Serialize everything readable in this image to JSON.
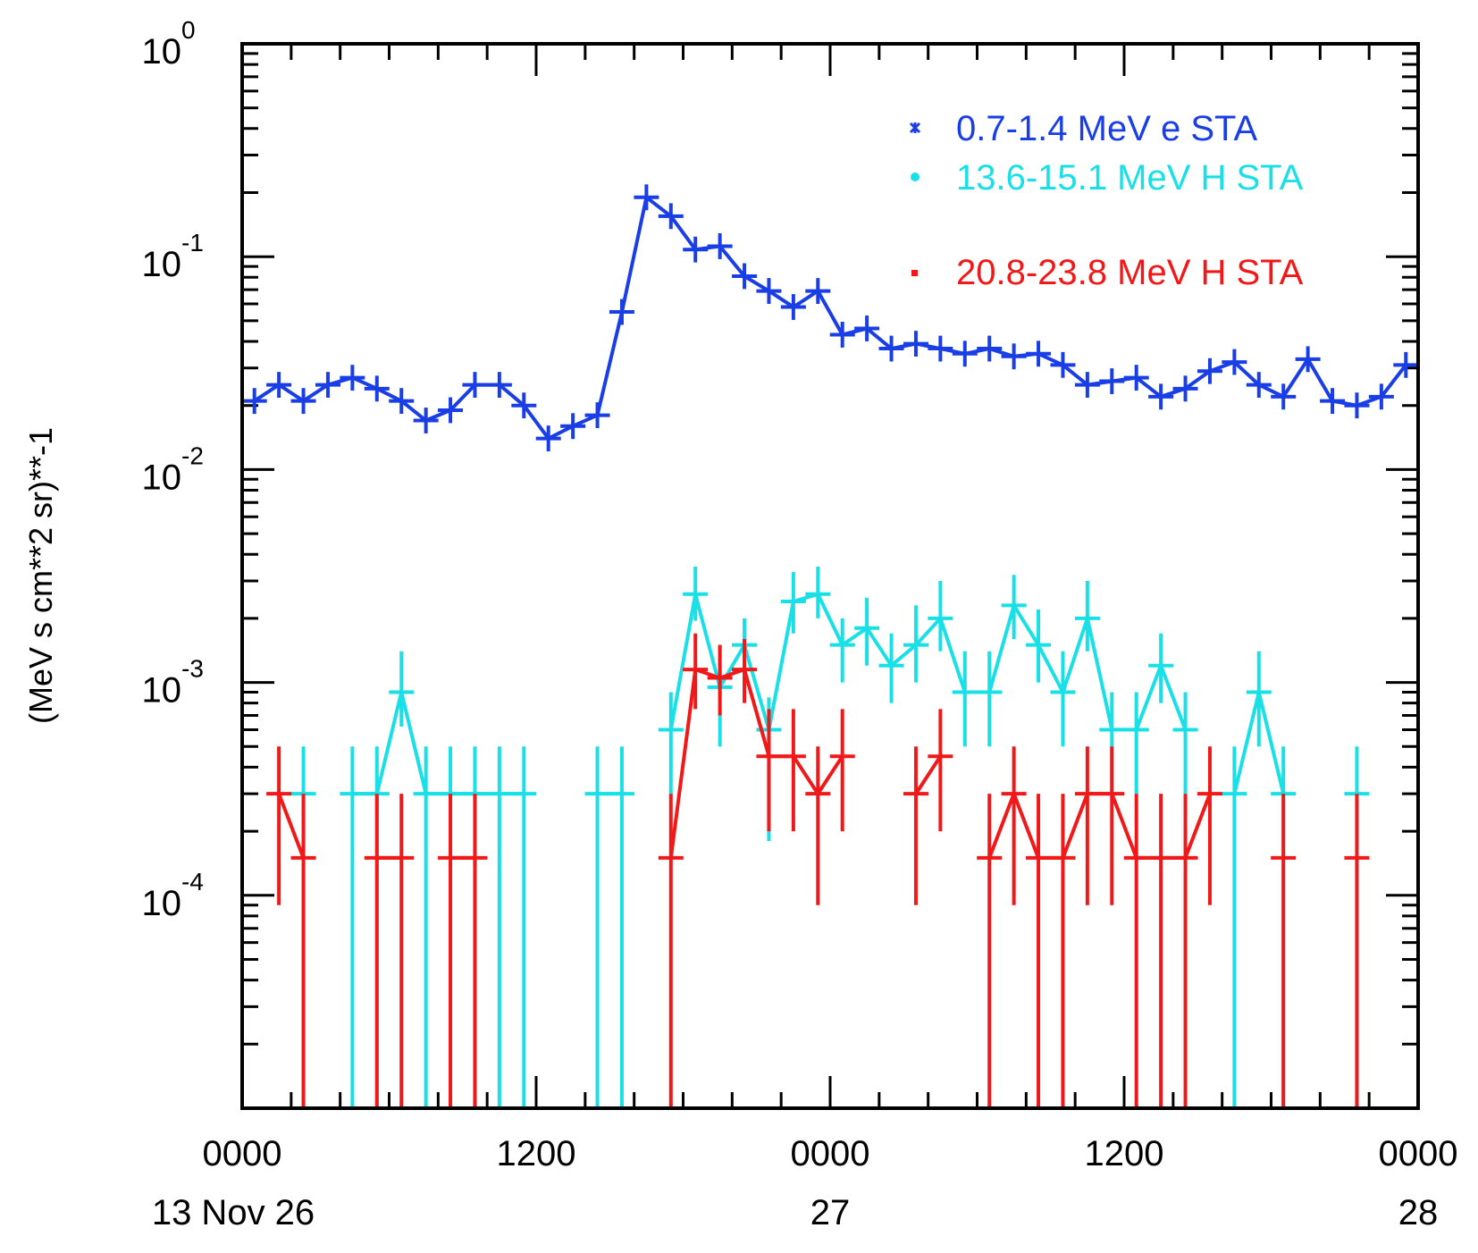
{
  "chart_data": {
    "type": "line",
    "title": "",
    "xlabel": "",
    "ylabel": "(MeV s cm**2 sr)**-1",
    "yscale": "log",
    "ylim": [
      1e-05,
      1
    ],
    "xlim": [
      0,
      48
    ],
    "x_unit": "hours since 2013 Nov 26 0000",
    "x_ticks": [
      {
        "x": 0,
        "top": "0000",
        "bottom": "13 Nov 26"
      },
      {
        "x": 12,
        "top": "1200",
        "bottom": ""
      },
      {
        "x": 24,
        "top": "0000",
        "bottom": "27"
      },
      {
        "x": 36,
        "top": "1200",
        "bottom": ""
      },
      {
        "x": 48,
        "top": "0000",
        "bottom": "28"
      }
    ],
    "y_ticks": [
      {
        "base": "10",
        "exp": "0",
        "value": 1
      },
      {
        "base": "10",
        "exp": "-1",
        "value": 0.1
      },
      {
        "base": "10",
        "exp": "-2",
        "value": 0.01
      },
      {
        "base": "10",
        "exp": "-3",
        "value": 0.001
      },
      {
        "base": "10",
        "exp": "-4",
        "value": 0.0001
      }
    ],
    "series": [
      {
        "name": "0.7-1.4 MeV e STA",
        "color": "#1a3ee6",
        "marker": "asterisk",
        "connect_all": true,
        "points": [
          {
            "x": 0.5,
            "y": 0.021
          },
          {
            "x": 1.5,
            "y": 0.025
          },
          {
            "x": 2.5,
            "y": 0.021
          },
          {
            "x": 3.5,
            "y": 0.025
          },
          {
            "x": 4.5,
            "y": 0.027
          },
          {
            "x": 5.5,
            "y": 0.024
          },
          {
            "x": 6.5,
            "y": 0.021
          },
          {
            "x": 7.5,
            "y": 0.017
          },
          {
            "x": 8.5,
            "y": 0.019
          },
          {
            "x": 9.5,
            "y": 0.025
          },
          {
            "x": 10.5,
            "y": 0.025
          },
          {
            "x": 11.5,
            "y": 0.02
          },
          {
            "x": 12.5,
            "y": 0.014
          },
          {
            "x": 13.5,
            "y": 0.016
          },
          {
            "x": 14.5,
            "y": 0.018
          },
          {
            "x": 15.5,
            "y": 0.055
          },
          {
            "x": 16.5,
            "y": 0.19
          },
          {
            "x": 17.5,
            "y": 0.155
          },
          {
            "x": 18.5,
            "y": 0.108
          },
          {
            "x": 19.5,
            "y": 0.112
          },
          {
            "x": 20.5,
            "y": 0.081
          },
          {
            "x": 21.5,
            "y": 0.069
          },
          {
            "x": 22.5,
            "y": 0.058
          },
          {
            "x": 23.5,
            "y": 0.069
          },
          {
            "x": 24.5,
            "y": 0.043
          },
          {
            "x": 25.5,
            "y": 0.046
          },
          {
            "x": 26.5,
            "y": 0.037
          },
          {
            "x": 27.5,
            "y": 0.039
          },
          {
            "x": 28.5,
            "y": 0.037
          },
          {
            "x": 29.5,
            "y": 0.035
          },
          {
            "x": 30.5,
            "y": 0.037
          },
          {
            "x": 31.5,
            "y": 0.034
          },
          {
            "x": 32.5,
            "y": 0.035
          },
          {
            "x": 33.5,
            "y": 0.031
          },
          {
            "x": 34.5,
            "y": 0.025
          },
          {
            "x": 35.5,
            "y": 0.026
          },
          {
            "x": 36.5,
            "y": 0.027
          },
          {
            "x": 37.5,
            "y": 0.022
          },
          {
            "x": 38.5,
            "y": 0.024
          },
          {
            "x": 39.5,
            "y": 0.029
          },
          {
            "x": 40.5,
            "y": 0.032
          },
          {
            "x": 41.5,
            "y": 0.025
          },
          {
            "x": 42.5,
            "y": 0.022
          },
          {
            "x": 43.5,
            "y": 0.033
          },
          {
            "x": 44.5,
            "y": 0.021
          },
          {
            "x": 45.5,
            "y": 0.02
          },
          {
            "x": 46.5,
            "y": 0.022
          },
          {
            "x": 47.5,
            "y": 0.031
          }
        ]
      },
      {
        "name": "13.6-15.1 MeV H STA",
        "color": "#19e0e6",
        "marker": "circle",
        "connect_all": false,
        "points": [
          {
            "x": 2.5,
            "y": 0.0003,
            "lo": 1e-05,
            "hi": 0.0005
          },
          {
            "x": 4.5,
            "y": 0.0003,
            "lo": 1e-05,
            "hi": 0.0005
          },
          {
            "x": 5.5,
            "y": 0.0003,
            "lo": 1e-05,
            "hi": 0.0005
          },
          {
            "x": 6.5,
            "y": 0.0009,
            "lo": 0.00062,
            "hi": 0.0014
          },
          {
            "x": 7.5,
            "y": 0.0003,
            "lo": 1e-05,
            "hi": 0.0005
          },
          {
            "x": 8.5,
            "y": 0.0003,
            "lo": 1e-05,
            "hi": 0.0005
          },
          {
            "x": 9.5,
            "y": 0.0003,
            "lo": 1e-05,
            "hi": 0.0005
          },
          {
            "x": 10.5,
            "y": 0.0003,
            "lo": 1e-05,
            "hi": 0.0005
          },
          {
            "x": 11.5,
            "y": 0.0003,
            "lo": 1e-05,
            "hi": 0.0005
          },
          {
            "x": 14.5,
            "y": 0.0003,
            "lo": 1e-05,
            "hi": 0.0005
          },
          {
            "x": 15.5,
            "y": 0.0003,
            "lo": 1e-05,
            "hi": 0.0005
          },
          {
            "x": 17.5,
            "y": 0.0006,
            "lo": 0.0003,
            "hi": 0.0009
          },
          {
            "x": 18.5,
            "y": 0.0026,
            "lo": 0.00195,
            "hi": 0.0035
          },
          {
            "x": 19.5,
            "y": 0.00095,
            "lo": 0.0005,
            "hi": 0.0015
          },
          {
            "x": 20.5,
            "y": 0.0015,
            "lo": 0.001,
            "hi": 0.002
          },
          {
            "x": 21.5,
            "y": 0.0006,
            "lo": 0.00018,
            "hi": 0.00085
          },
          {
            "x": 22.5,
            "y": 0.0024,
            "lo": 0.0017,
            "hi": 0.0033
          },
          {
            "x": 23.5,
            "y": 0.0026,
            "lo": 0.002,
            "hi": 0.0035
          },
          {
            "x": 24.5,
            "y": 0.0015,
            "lo": 0.001,
            "hi": 0.002
          },
          {
            "x": 25.5,
            "y": 0.0018,
            "lo": 0.0012,
            "hi": 0.0025
          },
          {
            "x": 26.5,
            "y": 0.0012,
            "lo": 0.0008,
            "hi": 0.0017
          },
          {
            "x": 27.5,
            "y": 0.0015,
            "lo": 0.001,
            "hi": 0.0023
          },
          {
            "x": 28.5,
            "y": 0.002,
            "lo": 0.0014,
            "hi": 0.003
          },
          {
            "x": 29.5,
            "y": 0.0009,
            "lo": 0.0005,
            "hi": 0.0014
          },
          {
            "x": 30.5,
            "y": 0.0009,
            "lo": 0.0005,
            "hi": 0.0014
          },
          {
            "x": 31.5,
            "y": 0.0023,
            "lo": 0.0016,
            "hi": 0.0032
          },
          {
            "x": 32.5,
            "y": 0.0015,
            "lo": 0.001,
            "hi": 0.0022
          },
          {
            "x": 33.5,
            "y": 0.0009,
            "lo": 0.0005,
            "hi": 0.0014
          },
          {
            "x": 34.5,
            "y": 0.002,
            "lo": 0.0014,
            "hi": 0.003
          },
          {
            "x": 35.5,
            "y": 0.0006,
            "lo": 0.0003,
            "hi": 0.0009
          },
          {
            "x": 36.5,
            "y": 0.0006,
            "lo": 0.0003,
            "hi": 0.0009
          },
          {
            "x": 37.5,
            "y": 0.0012,
            "lo": 0.0008,
            "hi": 0.0017
          },
          {
            "x": 38.5,
            "y": 0.0006,
            "lo": 0.0003,
            "hi": 0.0009
          },
          {
            "x": 40.5,
            "y": 0.0003,
            "lo": 1e-05,
            "hi": 0.0005
          },
          {
            "x": 41.5,
            "y": 0.0009,
            "lo": 0.0005,
            "hi": 0.0014
          },
          {
            "x": 42.5,
            "y": 0.0003,
            "lo": 1e-05,
            "hi": 0.0005
          },
          {
            "x": 45.5,
            "y": 0.0003,
            "lo": 1e-05,
            "hi": 0.0005
          }
        ]
      },
      {
        "name": "20.8-23.8 MeV H STA",
        "color": "#f01818",
        "marker": "dot",
        "connect_all": false,
        "points": [
          {
            "x": 1.5,
            "y": 0.0003,
            "lo": 9e-05,
            "hi": 0.0005
          },
          {
            "x": 2.5,
            "y": 0.00015,
            "lo": 1e-05,
            "hi": 0.0003
          },
          {
            "x": 5.5,
            "y": 0.00015,
            "lo": 1e-05,
            "hi": 0.0003
          },
          {
            "x": 6.5,
            "y": 0.00015,
            "lo": 1e-05,
            "hi": 0.0003
          },
          {
            "x": 8.5,
            "y": 0.00015,
            "lo": 1e-05,
            "hi": 0.0003
          },
          {
            "x": 9.5,
            "y": 0.00015,
            "lo": 1e-05,
            "hi": 0.0003
          },
          {
            "x": 17.5,
            "y": 0.00015,
            "lo": 1e-05,
            "hi": 0.0003
          },
          {
            "x": 18.5,
            "y": 0.00115,
            "lo": 0.00075,
            "hi": 0.0017
          },
          {
            "x": 19.5,
            "y": 0.00105,
            "lo": 0.0007,
            "hi": 0.0015
          },
          {
            "x": 20.5,
            "y": 0.00115,
            "lo": 0.0008,
            "hi": 0.0016
          },
          {
            "x": 21.5,
            "y": 0.00045,
            "lo": 0.0002,
            "hi": 0.00075
          },
          {
            "x": 22.5,
            "y": 0.00045,
            "lo": 0.0002,
            "hi": 0.00075
          },
          {
            "x": 23.5,
            "y": 0.0003,
            "lo": 9e-05,
            "hi": 0.0005
          },
          {
            "x": 24.5,
            "y": 0.00045,
            "lo": 0.0002,
            "hi": 0.00075
          },
          {
            "x": 27.5,
            "y": 0.0003,
            "lo": 9e-05,
            "hi": 0.0005
          },
          {
            "x": 28.5,
            "y": 0.00045,
            "lo": 0.0002,
            "hi": 0.00075
          },
          {
            "x": 30.5,
            "y": 0.00015,
            "lo": 1e-05,
            "hi": 0.0003
          },
          {
            "x": 31.5,
            "y": 0.0003,
            "lo": 9e-05,
            "hi": 0.0005
          },
          {
            "x": 32.5,
            "y": 0.00015,
            "lo": 1e-05,
            "hi": 0.0003
          },
          {
            "x": 33.5,
            "y": 0.00015,
            "lo": 1e-05,
            "hi": 0.0003
          },
          {
            "x": 34.5,
            "y": 0.0003,
            "lo": 9e-05,
            "hi": 0.0005
          },
          {
            "x": 35.5,
            "y": 0.0003,
            "lo": 9e-05,
            "hi": 0.0005
          },
          {
            "x": 36.5,
            "y": 0.00015,
            "lo": 1e-05,
            "hi": 0.0003
          },
          {
            "x": 37.5,
            "y": 0.00015,
            "lo": 1e-05,
            "hi": 0.0003
          },
          {
            "x": 38.5,
            "y": 0.00015,
            "lo": 1e-05,
            "hi": 0.0003
          },
          {
            "x": 39.5,
            "y": 0.0003,
            "lo": 9e-05,
            "hi": 0.0005
          },
          {
            "x": 42.5,
            "y": 0.00015,
            "lo": 1e-05,
            "hi": 0.0003
          },
          {
            "x": 45.5,
            "y": 0.00015,
            "lo": 1e-05,
            "hi": 0.0003
          }
        ]
      }
    ]
  }
}
